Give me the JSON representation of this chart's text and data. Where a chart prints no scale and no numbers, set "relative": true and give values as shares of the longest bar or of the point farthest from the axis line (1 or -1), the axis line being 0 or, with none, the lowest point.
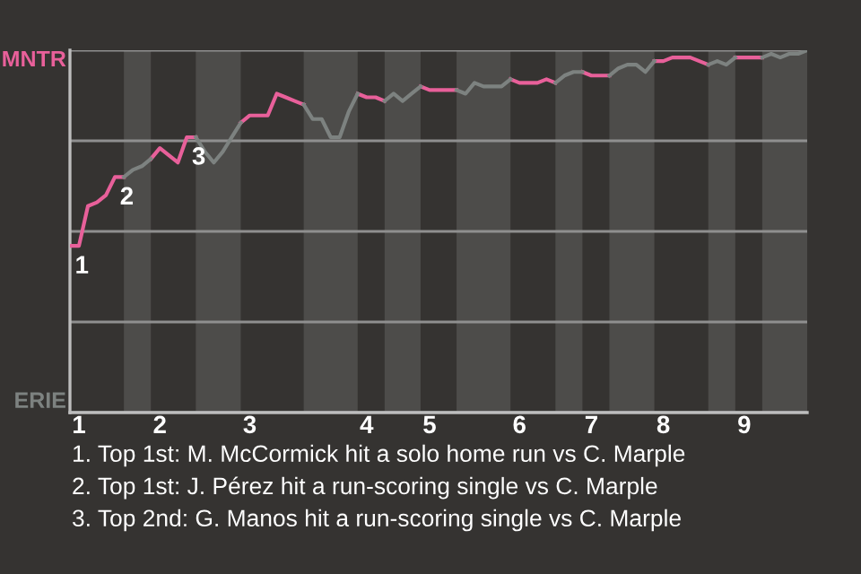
{
  "chart_data": {
    "type": "line",
    "relative": true,
    "categories": [
      null,
      "1",
      null,
      null,
      null,
      null,
      null,
      null,
      null,
      null,
      "2",
      null,
      null,
      null,
      null,
      null,
      null,
      null,
      null,
      null,
      "3",
      null,
      null,
      null,
      null,
      null,
      null,
      null,
      null,
      null,
      null,
      null,
      null,
      "4",
      null,
      null,
      null,
      null,
      null,
      null,
      "5",
      null,
      null,
      null,
      null,
      null,
      null,
      null,
      null,
      null,
      "6",
      null,
      null,
      null,
      null,
      null,
      null,
      null,
      "7",
      null,
      null,
      null,
      null,
      null,
      null,
      null,
      "8",
      null,
      null,
      null,
      null,
      null,
      null,
      null,
      null,
      "9",
      null,
      null,
      null,
      null,
      null,
      null,
      null
    ],
    "grid": "y",
    "legend": false,
    "marker": "none",
    "line_style": "solid",
    "series": [
      {
        "name": "MNTR",
        "color": "#e8609a",
        "values": [
          0.46,
          0.46,
          0.57,
          0.58,
          0.6,
          0.65,
          0.65,
          null,
          null,
          0.7,
          0.73,
          0.71,
          0.69,
          0.76,
          0.76,
          null,
          null,
          null,
          null,
          0.8,
          0.82,
          0.82,
          0.82,
          0.88,
          0.87,
          0.86,
          0.85,
          null,
          null,
          null,
          null,
          null,
          0.88,
          0.87,
          0.87,
          0.86,
          null,
          null,
          null,
          0.9,
          0.89,
          0.89,
          0.89,
          0.89,
          null,
          null,
          null,
          null,
          null,
          0.92,
          0.91,
          0.91,
          0.91,
          0.92,
          0.91,
          null,
          null,
          0.94,
          0.93,
          0.93,
          0.93,
          null,
          null,
          null,
          null,
          0.97,
          0.97,
          0.98,
          0.98,
          0.98,
          0.97,
          0.96,
          null,
          null,
          0.98,
          0.98,
          0.98,
          0.98,
          null,
          null,
          null,
          null,
          null
        ]
      },
      {
        "name": "ERIE",
        "color": "#7d8280",
        "values": [
          null,
          null,
          null,
          null,
          null,
          null,
          0.65,
          0.67,
          0.68,
          0.7,
          null,
          null,
          null,
          null,
          0.76,
          0.72,
          0.69,
          0.72,
          0.76,
          0.8,
          null,
          null,
          null,
          null,
          null,
          null,
          0.85,
          0.81,
          0.81,
          0.76,
          0.76,
          0.83,
          0.88,
          null,
          null,
          0.86,
          0.88,
          0.86,
          0.88,
          0.9,
          null,
          null,
          null,
          0.89,
          0.88,
          0.91,
          0.9,
          0.9,
          0.9,
          0.92,
          null,
          null,
          null,
          null,
          0.91,
          0.93,
          0.94,
          0.94,
          null,
          null,
          0.93,
          0.95,
          0.96,
          0.96,
          0.94,
          0.97,
          null,
          null,
          null,
          null,
          null,
          0.96,
          0.97,
          0.96,
          0.98,
          null,
          null,
          0.98,
          0.99,
          0.98,
          0.99,
          0.99,
          1.0
        ]
      }
    ],
    "annotations": [
      {
        "text": "1",
        "y": 0.46
      },
      {
        "text": "2",
        "y": 0.65
      },
      {
        "text": "3",
        "y": 0.76
      },
      "1. Top 1st: M. McCormick hit a solo home run vs C. Marple",
      "2. Top 1st: J. Pérez hit a run-scoring single vs C. Marple",
      "3. Top 2nd: G. Manos hit a run-scoring single vs C. Marple"
    ]
  }
}
